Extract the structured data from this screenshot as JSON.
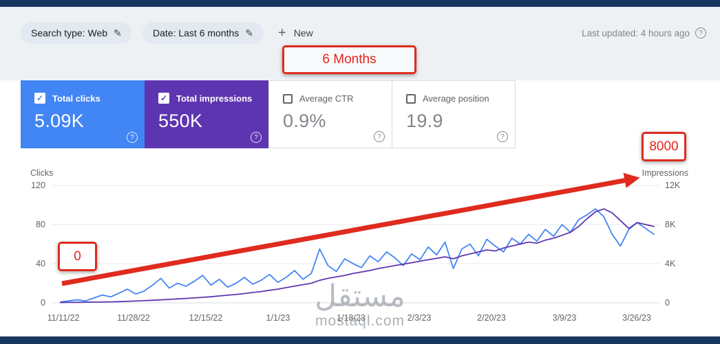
{
  "icons": {
    "check": "✓",
    "pencil": "✎",
    "plus": "+",
    "help": "?"
  },
  "header": {
    "search_type_chip": "Search type: Web",
    "date_chip": "Date: Last 6 months",
    "new_button": "New",
    "last_updated": "Last updated: 4 hours ago"
  },
  "annotations": {
    "color": "#df2b1e",
    "six_months_label": "6 Months",
    "start_label": "0",
    "end_label": "8000"
  },
  "cards": [
    {
      "label": "Total clicks",
      "value": "5.09K",
      "checked": true,
      "bg": "#4285f4"
    },
    {
      "label": "Total impressions",
      "value": "550K",
      "checked": true,
      "bg": "#5e35b1"
    },
    {
      "label": "Average CTR",
      "value": "0.9%",
      "checked": false,
      "bg": "#ffffff"
    },
    {
      "label": "Average position",
      "value": "19.9",
      "checked": false,
      "bg": "#ffffff"
    }
  ],
  "chart_data": {
    "type": "line",
    "grid": true,
    "left_axis": {
      "label": "Clicks",
      "range": [
        0,
        120
      ],
      "ticks": [
        "120",
        "80",
        "40",
        "0"
      ]
    },
    "right_axis": {
      "label": "Impressions",
      "range": [
        0,
        12000
      ],
      "ticks": [
        "12K",
        "8K",
        "4K",
        "0"
      ]
    },
    "x_tick_labels": [
      "11/11/22",
      "11/28/22",
      "12/15/22",
      "1/1/23",
      "1/18/23",
      "2/3/23",
      "2/20/23",
      "3/9/23",
      "3/26/23"
    ],
    "series": [
      {
        "name": "Total clicks",
        "axis": "left",
        "color": "#4285f4",
        "values": [
          1,
          2,
          3,
          2,
          5,
          8,
          6,
          10,
          14,
          9,
          12,
          18,
          25,
          15,
          20,
          17,
          22,
          28,
          18,
          24,
          16,
          20,
          26,
          19,
          23,
          29,
          21,
          26,
          33,
          24,
          30,
          55,
          38,
          32,
          45,
          40,
          36,
          48,
          42,
          52,
          46,
          38,
          50,
          44,
          57,
          49,
          62,
          35,
          55,
          60,
          48,
          65,
          58,
          52,
          66,
          60,
          70,
          63,
          75,
          68,
          80,
          72,
          85,
          90,
          96,
          88,
          70,
          58,
          75,
          82,
          76,
          70
        ]
      },
      {
        "name": "Total impressions",
        "axis": "right",
        "color": "#5e35b1",
        "values": [
          30,
          40,
          50,
          60,
          70,
          80,
          100,
          120,
          150,
          180,
          220,
          260,
          300,
          350,
          400,
          450,
          500,
          560,
          620,
          700,
          780,
          850,
          950,
          1050,
          1150,
          1280,
          1400,
          1550,
          1700,
          1850,
          2000,
          2300,
          2500,
          2650,
          2800,
          3000,
          3150,
          3300,
          3500,
          3650,
          3800,
          3950,
          4100,
          4250,
          4400,
          4550,
          4700,
          4500,
          4800,
          5000,
          5200,
          5400,
          5300,
          5600,
          5800,
          6000,
          6200,
          6100,
          6400,
          6600,
          6900,
          7200,
          7800,
          8600,
          9300,
          9600,
          9200,
          8400,
          7600,
          8200,
          8000,
          7800
        ]
      }
    ]
  },
  "watermark": {
    "arabic": "مستقل",
    "site": "mostaql.com"
  }
}
